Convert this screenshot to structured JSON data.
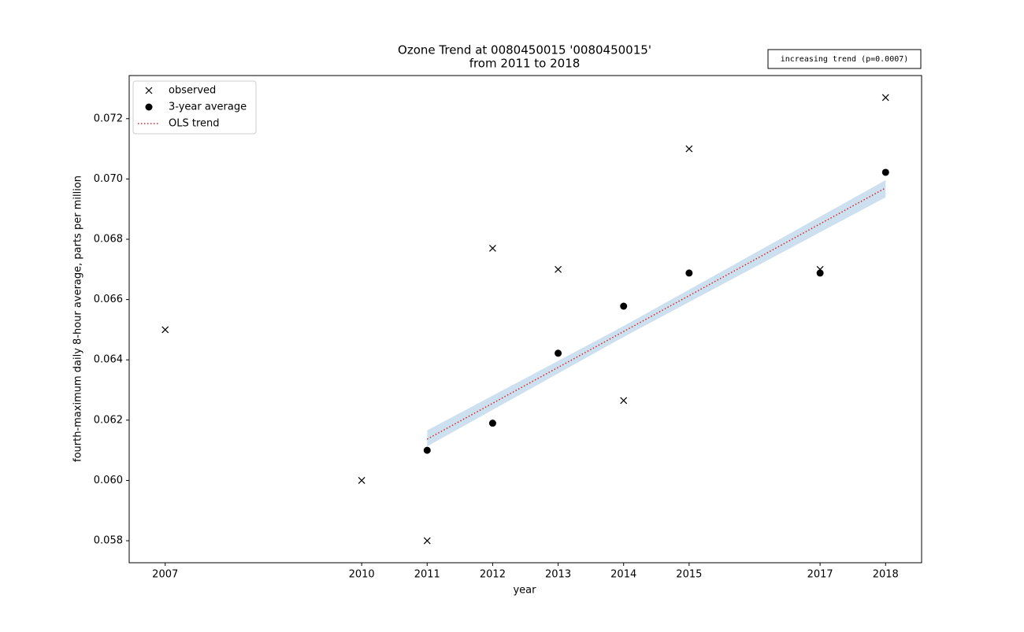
{
  "chart_data": {
    "type": "scatter",
    "title": "Ozone Trend at 0080450015 '0080450015'",
    "subtitle": "from 2011 to 2018",
    "annotation": "increasing trend (p=0.0007)",
    "x_label": "year",
    "y_label": "fourth-maximum daily 8-hour average, parts per million",
    "xlim": [
      2006.45,
      2018.55
    ],
    "xticks": [
      2007,
      2010,
      2011,
      2012,
      2013,
      2014,
      2015,
      2017,
      2018
    ],
    "ylim": [
      0.05727,
      0.07343
    ],
    "yticks": [
      0.058,
      {
        "value": 0.06,
        "label": "0.060"
      },
      0.062,
      0.064,
      0.066,
      0.068,
      {
        "value": 0.07,
        "label": "0.070"
      },
      0.072
    ],
    "grid": false,
    "legend": "upper left",
    "series": [
      {
        "name": "observed",
        "type": "scatter",
        "marker": "x",
        "color": "#000000",
        "x": [
          2007,
          2010,
          2011,
          2012,
          2013,
          2014,
          2015,
          2017,
          2018
        ],
        "values": [
          0.065,
          0.06,
          0.058,
          0.0677,
          0.067,
          0.06265,
          0.071,
          0.067,
          0.0727
        ]
      },
      {
        "name": "3-year average",
        "type": "scatter",
        "marker": "o",
        "color": "#000000",
        "x": [
          2011,
          2012,
          2013,
          2014,
          2015,
          2017,
          2018
        ],
        "values": [
          0.061,
          0.0619,
          0.06422,
          0.06578,
          0.06688,
          0.06688,
          0.07022
        ]
      },
      {
        "name": "OLS trend",
        "type": "line",
        "linestyle": "dotted",
        "color": "#d62728",
        "band_color": "#cde0ef",
        "x": [
          2011,
          2014,
          2018
        ],
        "values": [
          0.06137,
          0.06494,
          0.0697
        ],
        "lower": [
          0.06113,
          0.06476,
          0.06939
        ],
        "upper": [
          0.06166,
          0.06512,
          0.06996
        ]
      }
    ]
  }
}
